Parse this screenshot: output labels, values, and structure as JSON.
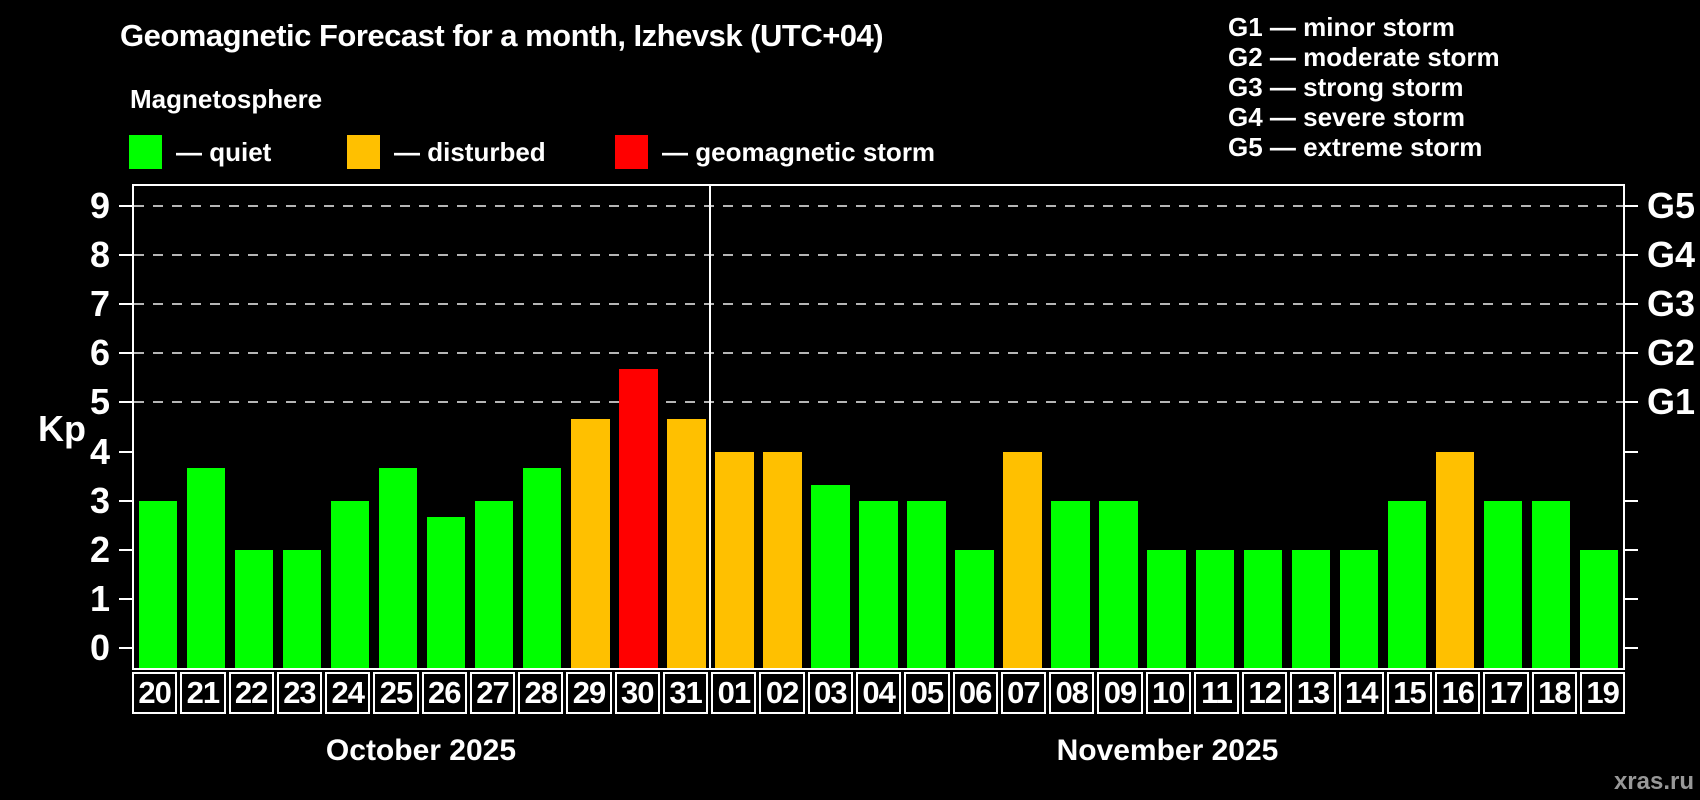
{
  "title": "Geomagnetic Forecast for a month, Izhevsk (UTC+04)",
  "subtitle": "Magnetosphere",
  "bar_legend": {
    "quiet_label": "— quiet",
    "disturbed_label": "— disturbed",
    "storm_label": "— geomagnetic storm"
  },
  "storm_legend": {
    "g1": "G1 — minor storm",
    "g2": "G2 — moderate storm",
    "g3": "G3 — strong storm",
    "g4": "G4 — severe storm",
    "g5": "G5 — extreme storm"
  },
  "watermark": "xras.ru",
  "colors": {
    "quiet": "#00ff00",
    "disturbed": "#ffc000",
    "storm": "#ff0000",
    "grid": "#b5b5b5",
    "axis": "#ffffff",
    "background": "#000000"
  },
  "chart_data": {
    "type": "bar",
    "title": "Geomagnetic Forecast for a month, Izhevsk (UTC+04)",
    "ylabel": "Kp",
    "ylim": [
      -0.4,
      9.4
    ],
    "y_ticks": [
      0,
      1,
      2,
      3,
      4,
      5,
      6,
      7,
      8,
      9
    ],
    "gridlines_at_kp": [
      5,
      6,
      7,
      8,
      9
    ],
    "grid": true,
    "legend_position": "top",
    "right_axis_labels": [
      {
        "kp": 5,
        "label": "G1"
      },
      {
        "kp": 6,
        "label": "G2"
      },
      {
        "kp": 7,
        "label": "G3"
      },
      {
        "kp": 8,
        "label": "G4"
      },
      {
        "kp": 9,
        "label": "G5"
      }
    ],
    "months": [
      {
        "label": "October 2025",
        "days": 12
      },
      {
        "label": "November 2025",
        "days": 19
      }
    ],
    "categories": [
      "20",
      "21",
      "22",
      "23",
      "24",
      "25",
      "26",
      "27",
      "28",
      "29",
      "30",
      "31",
      "01",
      "02",
      "03",
      "04",
      "05",
      "06",
      "07",
      "08",
      "09",
      "10",
      "11",
      "12",
      "13",
      "14",
      "15",
      "16",
      "17",
      "18",
      "19"
    ],
    "values": [
      3,
      3.67,
      2,
      2,
      3,
      3.67,
      2.67,
      3,
      3.67,
      4.67,
      5.67,
      4.67,
      4,
      4,
      3.33,
      3,
      3,
      2,
      4,
      3,
      3,
      2,
      2,
      2,
      2,
      2,
      3,
      4,
      3,
      3,
      2
    ],
    "statuses": [
      "quiet",
      "quiet",
      "quiet",
      "quiet",
      "quiet",
      "quiet",
      "quiet",
      "quiet",
      "quiet",
      "disturbed",
      "storm",
      "disturbed",
      "disturbed",
      "disturbed",
      "quiet",
      "quiet",
      "quiet",
      "quiet",
      "disturbed",
      "quiet",
      "quiet",
      "quiet",
      "quiet",
      "quiet",
      "quiet",
      "quiet",
      "quiet",
      "disturbed",
      "quiet",
      "quiet",
      "quiet"
    ]
  }
}
